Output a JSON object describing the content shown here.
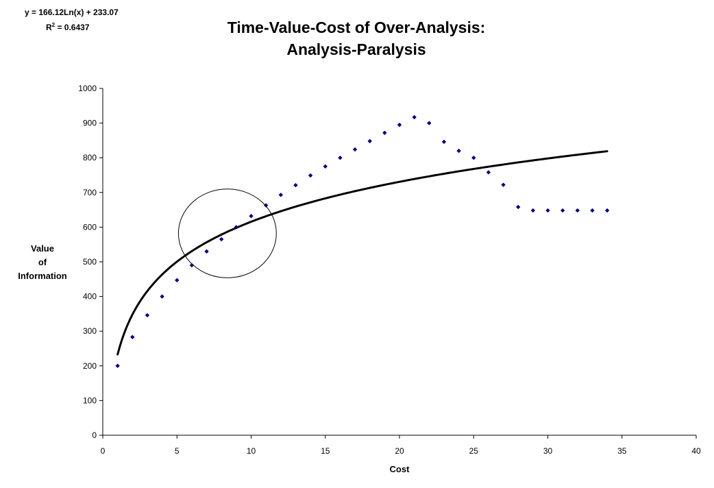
{
  "chart_data": {
    "type": "scatter",
    "title_lines": [
      "Time-Value-Cost of Over-Analysis:",
      "Analysis-Paralysis"
    ],
    "xlabel": "Cost",
    "ylabel_lines": [
      "Value",
      "of",
      "Information"
    ],
    "xlim": [
      0,
      40
    ],
    "ylim": [
      0,
      1000
    ],
    "x_ticks": [
      0,
      5,
      10,
      15,
      20,
      25,
      30,
      35,
      40
    ],
    "y_ticks": [
      0,
      100,
      200,
      300,
      400,
      500,
      600,
      700,
      800,
      900,
      1000
    ],
    "grid": false,
    "legend": "none",
    "series": [
      {
        "name": "Value of Information",
        "marker": "diamond",
        "color": "#000080",
        "x": [
          1,
          2,
          3,
          4,
          5,
          6,
          7,
          8,
          9,
          10,
          11,
          12,
          13,
          14,
          15,
          16,
          17,
          18,
          19,
          20,
          21,
          22,
          23,
          24,
          25,
          26,
          27,
          28,
          29,
          30,
          31,
          32,
          33,
          34
        ],
        "y": [
          200,
          283,
          346,
          400,
          447,
          490,
          530,
          565,
          600,
          632,
          663,
          693,
          721,
          749,
          775,
          800,
          824,
          848,
          872,
          895,
          917,
          900,
          846,
          820,
          800,
          758,
          722,
          658,
          648,
          648,
          648,
          648,
          648,
          648
        ]
      }
    ],
    "trendline": {
      "type": "logarithmic",
      "a": 166.12,
      "b": 233.07,
      "x_range": [
        1,
        34
      ],
      "color": "#000000",
      "equation_label": "y = 166.12Ln(x) + 233.07",
      "r2_label_base": "R",
      "r2_label_sup": "2",
      "r2_label_value": " = 0.6437"
    },
    "annotation": {
      "type": "ellipse",
      "center": [
        8.4,
        582
      ],
      "rx_units": 3.3,
      "ry_units": 128,
      "color": "#000000"
    }
  }
}
